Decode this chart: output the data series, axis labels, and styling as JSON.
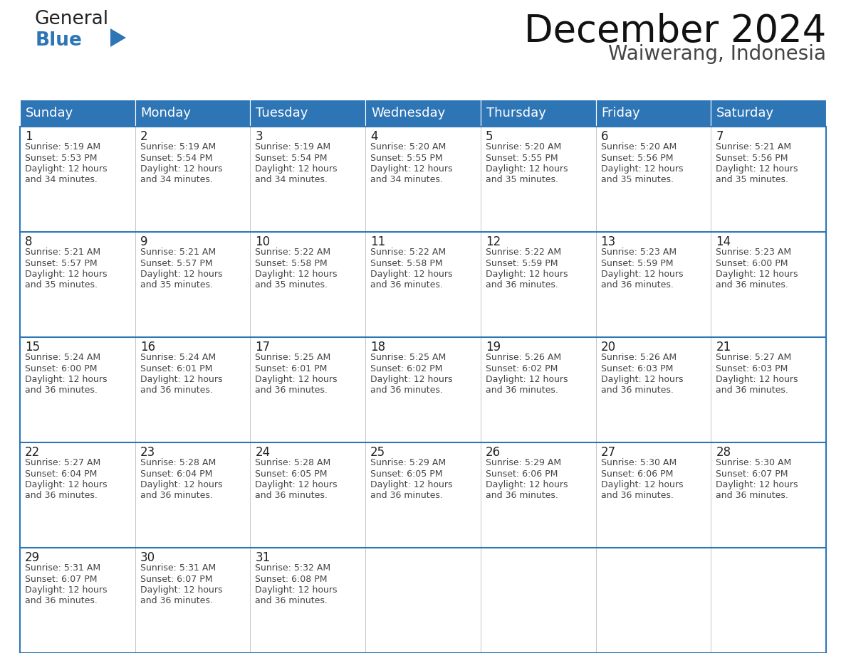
{
  "title": "December 2024",
  "subtitle": "Waiwerang, Indonesia",
  "header_bg_color": "#2e75b6",
  "header_text_color": "#ffffff",
  "grid_line_color": "#2e75b6",
  "cell_bg_color": "#ffffff",
  "day_names": [
    "Sunday",
    "Monday",
    "Tuesday",
    "Wednesday",
    "Thursday",
    "Friday",
    "Saturday"
  ],
  "title_fontsize": 38,
  "subtitle_fontsize": 20,
  "header_fontsize": 13,
  "cell_day_fontsize": 12,
  "cell_text_fontsize": 9,
  "logo_general_color": "#222222",
  "logo_blue_color": "#2e75b6",
  "weeks": [
    [
      {
        "day": 1,
        "sunrise": "5:19 AM",
        "sunset": "5:53 PM",
        "daylight_hours": 12,
        "daylight_minutes": 34
      },
      {
        "day": 2,
        "sunrise": "5:19 AM",
        "sunset": "5:54 PM",
        "daylight_hours": 12,
        "daylight_minutes": 34
      },
      {
        "day": 3,
        "sunrise": "5:19 AM",
        "sunset": "5:54 PM",
        "daylight_hours": 12,
        "daylight_minutes": 34
      },
      {
        "day": 4,
        "sunrise": "5:20 AM",
        "sunset": "5:55 PM",
        "daylight_hours": 12,
        "daylight_minutes": 34
      },
      {
        "day": 5,
        "sunrise": "5:20 AM",
        "sunset": "5:55 PM",
        "daylight_hours": 12,
        "daylight_minutes": 35
      },
      {
        "day": 6,
        "sunrise": "5:20 AM",
        "sunset": "5:56 PM",
        "daylight_hours": 12,
        "daylight_minutes": 35
      },
      {
        "day": 7,
        "sunrise": "5:21 AM",
        "sunset": "5:56 PM",
        "daylight_hours": 12,
        "daylight_minutes": 35
      }
    ],
    [
      {
        "day": 8,
        "sunrise": "5:21 AM",
        "sunset": "5:57 PM",
        "daylight_hours": 12,
        "daylight_minutes": 35
      },
      {
        "day": 9,
        "sunrise": "5:21 AM",
        "sunset": "5:57 PM",
        "daylight_hours": 12,
        "daylight_minutes": 35
      },
      {
        "day": 10,
        "sunrise": "5:22 AM",
        "sunset": "5:58 PM",
        "daylight_hours": 12,
        "daylight_minutes": 35
      },
      {
        "day": 11,
        "sunrise": "5:22 AM",
        "sunset": "5:58 PM",
        "daylight_hours": 12,
        "daylight_minutes": 36
      },
      {
        "day": 12,
        "sunrise": "5:22 AM",
        "sunset": "5:59 PM",
        "daylight_hours": 12,
        "daylight_minutes": 36
      },
      {
        "day": 13,
        "sunrise": "5:23 AM",
        "sunset": "5:59 PM",
        "daylight_hours": 12,
        "daylight_minutes": 36
      },
      {
        "day": 14,
        "sunrise": "5:23 AM",
        "sunset": "6:00 PM",
        "daylight_hours": 12,
        "daylight_minutes": 36
      }
    ],
    [
      {
        "day": 15,
        "sunrise": "5:24 AM",
        "sunset": "6:00 PM",
        "daylight_hours": 12,
        "daylight_minutes": 36
      },
      {
        "day": 16,
        "sunrise": "5:24 AM",
        "sunset": "6:01 PM",
        "daylight_hours": 12,
        "daylight_minutes": 36
      },
      {
        "day": 17,
        "sunrise": "5:25 AM",
        "sunset": "6:01 PM",
        "daylight_hours": 12,
        "daylight_minutes": 36
      },
      {
        "day": 18,
        "sunrise": "5:25 AM",
        "sunset": "6:02 PM",
        "daylight_hours": 12,
        "daylight_minutes": 36
      },
      {
        "day": 19,
        "sunrise": "5:26 AM",
        "sunset": "6:02 PM",
        "daylight_hours": 12,
        "daylight_minutes": 36
      },
      {
        "day": 20,
        "sunrise": "5:26 AM",
        "sunset": "6:03 PM",
        "daylight_hours": 12,
        "daylight_minutes": 36
      },
      {
        "day": 21,
        "sunrise": "5:27 AM",
        "sunset": "6:03 PM",
        "daylight_hours": 12,
        "daylight_minutes": 36
      }
    ],
    [
      {
        "day": 22,
        "sunrise": "5:27 AM",
        "sunset": "6:04 PM",
        "daylight_hours": 12,
        "daylight_minutes": 36
      },
      {
        "day": 23,
        "sunrise": "5:28 AM",
        "sunset": "6:04 PM",
        "daylight_hours": 12,
        "daylight_minutes": 36
      },
      {
        "day": 24,
        "sunrise": "5:28 AM",
        "sunset": "6:05 PM",
        "daylight_hours": 12,
        "daylight_minutes": 36
      },
      {
        "day": 25,
        "sunrise": "5:29 AM",
        "sunset": "6:05 PM",
        "daylight_hours": 12,
        "daylight_minutes": 36
      },
      {
        "day": 26,
        "sunrise": "5:29 AM",
        "sunset": "6:06 PM",
        "daylight_hours": 12,
        "daylight_minutes": 36
      },
      {
        "day": 27,
        "sunrise": "5:30 AM",
        "sunset": "6:06 PM",
        "daylight_hours": 12,
        "daylight_minutes": 36
      },
      {
        "day": 28,
        "sunrise": "5:30 AM",
        "sunset": "6:07 PM",
        "daylight_hours": 12,
        "daylight_minutes": 36
      }
    ],
    [
      {
        "day": 29,
        "sunrise": "5:31 AM",
        "sunset": "6:07 PM",
        "daylight_hours": 12,
        "daylight_minutes": 36
      },
      {
        "day": 30,
        "sunrise": "5:31 AM",
        "sunset": "6:07 PM",
        "daylight_hours": 12,
        "daylight_minutes": 36
      },
      {
        "day": 31,
        "sunrise": "5:32 AM",
        "sunset": "6:08 PM",
        "daylight_hours": 12,
        "daylight_minutes": 36
      },
      null,
      null,
      null,
      null
    ]
  ]
}
